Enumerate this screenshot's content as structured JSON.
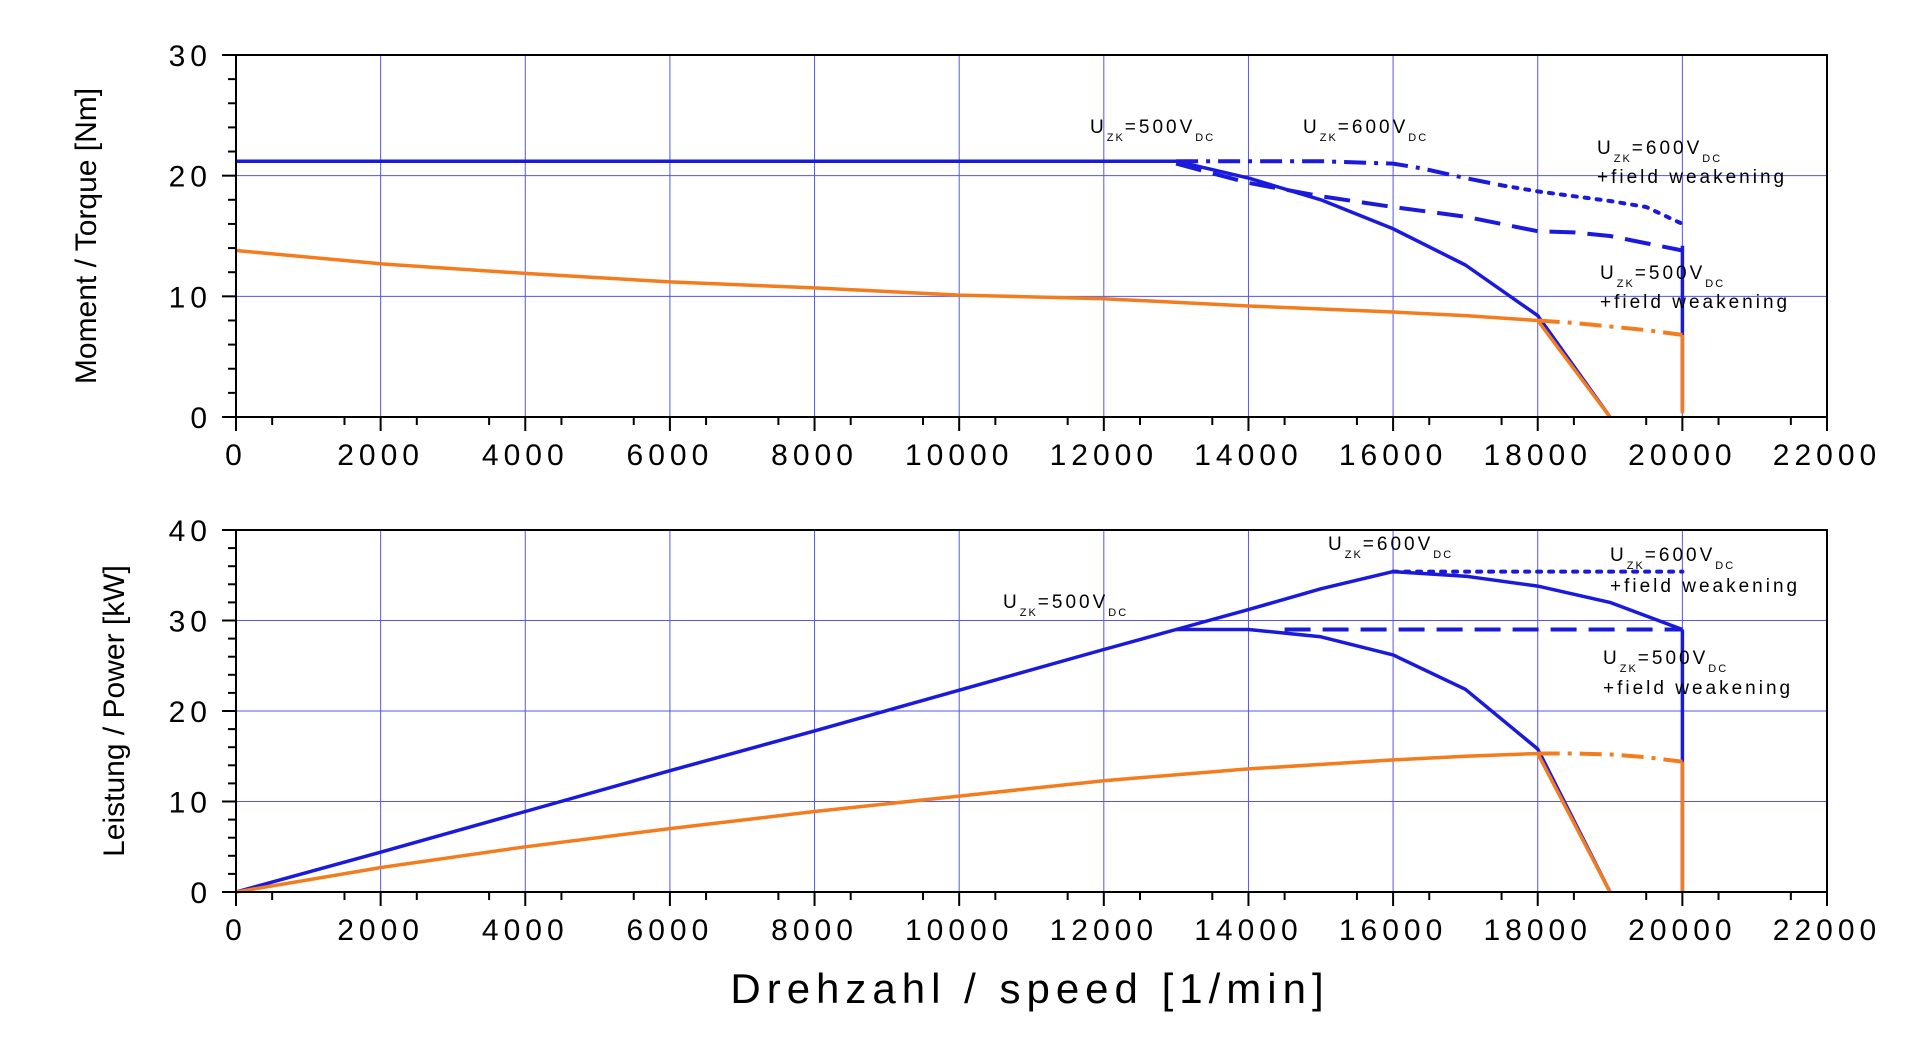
{
  "chart_data": [
    {
      "type": "line",
      "ylabel": "Moment / Torque [Nm]",
      "xlim": [
        0,
        22000
      ],
      "ylim": [
        0,
        30
      ],
      "xticks": [
        "0",
        "2000",
        "4000",
        "6000",
        "8000",
        "10000",
        "12000",
        "14000",
        "16000",
        "18000",
        "20000",
        "22000"
      ],
      "yticks": [
        "0",
        "10",
        "20",
        "30"
      ],
      "grid": true,
      "annotations": [
        {
          "id": "u500",
          "main": "U",
          "sub": "ZK",
          "mid": "=500V",
          "sub2": "DC",
          "extra": ""
        },
        {
          "id": "u600",
          "main": "U",
          "sub": "ZK",
          "mid": "=600V",
          "sub2": "DC",
          "extra": ""
        },
        {
          "id": "u600fw",
          "main": "U",
          "sub": "ZK",
          "mid": "=600V",
          "sub2": "DC",
          "extra": "+field weakening"
        },
        {
          "id": "u500fw",
          "main": "U",
          "sub": "ZK",
          "mid": "=500V",
          "sub2": "DC",
          "extra": "+field weakening"
        }
      ],
      "series": [
        {
          "name": "blue 500V",
          "color": "#1a1adc",
          "style": "solid",
          "x": [
            0,
            13000,
            14000,
            15000,
            16000,
            17000,
            18000,
            19000
          ],
          "y": [
            21.2,
            21.2,
            19.8,
            18.0,
            15.6,
            12.6,
            8.4,
            0
          ]
        },
        {
          "name": "blue 600V",
          "color": "#1a1adc",
          "style": "dashdot",
          "x": [
            13000,
            15000,
            16000,
            16400,
            17000,
            17500
          ],
          "y": [
            21.2,
            21.2,
            21.0,
            20.6,
            19.8,
            19.2
          ]
        },
        {
          "name": "blue 600V field weakening",
          "color": "#1a1adc",
          "style": "dotted",
          "x": [
            17500,
            18000,
            18500,
            19000,
            19500,
            20000
          ],
          "y": [
            19.2,
            18.7,
            18.3,
            17.9,
            17.4,
            16.0
          ]
        },
        {
          "name": "blue 500V field weakening",
          "color": "#1a1adc",
          "style": "dashed",
          "x": [
            13000,
            14000,
            15000,
            16000,
            17000,
            18000,
            18500,
            19000,
            20000
          ],
          "y": [
            21.0,
            19.4,
            18.3,
            17.4,
            16.6,
            15.4,
            15.3,
            15.0,
            13.8
          ]
        },
        {
          "name": "blue vertical 20000",
          "color": "#1a1adc",
          "style": "solid",
          "x": [
            20000,
            20000
          ],
          "y": [
            14.2,
            0.5
          ]
        },
        {
          "name": "orange",
          "color": "#f37c1e",
          "style": "solid",
          "x": [
            0,
            2000,
            4000,
            6000,
            8000,
            10000,
            12000,
            14000,
            16000,
            17000,
            18000,
            19000
          ],
          "y": [
            13.8,
            12.7,
            11.9,
            11.2,
            10.7,
            10.1,
            9.8,
            9.2,
            8.7,
            8.4,
            8.0,
            0
          ]
        },
        {
          "name": "orange field weakening",
          "color": "#f37c1e",
          "style": "dashdot",
          "x": [
            18000,
            18500,
            19000,
            19500,
            20000
          ],
          "y": [
            8.0,
            7.8,
            7.5,
            7.2,
            6.8
          ]
        },
        {
          "name": "orange vertical 20000",
          "color": "#f37c1e",
          "style": "solid",
          "x": [
            20000,
            20000
          ],
          "y": [
            6.8,
            0.3
          ]
        }
      ]
    },
    {
      "type": "line",
      "ylabel": "Leistung / Power [kW]",
      "xlabel": "Drehzahl / speed [1/min]",
      "xlim": [
        0,
        22000
      ],
      "ylim": [
        0,
        40
      ],
      "xticks": [
        "0",
        "2000",
        "4000",
        "6000",
        "8000",
        "10000",
        "12000",
        "14000",
        "16000",
        "18000",
        "20000",
        "22000"
      ],
      "yticks": [
        "0",
        "10",
        "20",
        "30",
        "40"
      ],
      "grid": true,
      "annotations": [
        {
          "id": "u600",
          "main": "U",
          "sub": "ZK",
          "mid": "=600V",
          "sub2": "DC",
          "extra": ""
        },
        {
          "id": "u500",
          "main": "U",
          "sub": "ZK",
          "mid": "=500V",
          "sub2": "DC",
          "extra": ""
        },
        {
          "id": "u600fw",
          "main": "U",
          "sub": "ZK",
          "mid": "=600V",
          "sub2": "DC",
          "extra": "+field weakening"
        },
        {
          "id": "u500fw",
          "main": "U",
          "sub": "ZK",
          "mid": "=500V",
          "sub2": "DC",
          "extra": "+field weakening"
        }
      ],
      "series": [
        {
          "name": "blue main",
          "color": "#1a1adc",
          "style": "solid",
          "x": [
            0,
            2000,
            4000,
            6000,
            8000,
            10000,
            12000,
            13000,
            14000,
            15000,
            16000,
            17000,
            18000,
            19000,
            20000
          ],
          "y": [
            0,
            4.4,
            8.9,
            13.4,
            17.8,
            22.3,
            26.8,
            29.0,
            31.2,
            33.5,
            35.4,
            34.9,
            33.8,
            32.0,
            29.0
          ]
        },
        {
          "name": "blue 500V",
          "color": "#1a1adc",
          "style": "solid",
          "x": [
            13000,
            14000,
            15000,
            16000,
            17000,
            18000,
            19000
          ],
          "y": [
            29.0,
            29.0,
            28.2,
            26.2,
            22.4,
            15.8,
            0
          ]
        },
        {
          "name": "blue 600V field weakening",
          "color": "#1a1adc",
          "style": "dotted",
          "x": [
            16000,
            18000,
            20000
          ],
          "y": [
            35.4,
            35.4,
            35.4
          ]
        },
        {
          "name": "blue 500V field weakening",
          "color": "#1a1adc",
          "style": "dashed",
          "x": [
            14500,
            20000
          ],
          "y": [
            29.0,
            29.0
          ]
        },
        {
          "name": "blue vertical 20000",
          "color": "#1a1adc",
          "style": "solid",
          "x": [
            20000,
            20000
          ],
          "y": [
            29.0,
            0
          ]
        },
        {
          "name": "orange",
          "color": "#f37c1e",
          "style": "solid",
          "x": [
            0,
            2000,
            4000,
            6000,
            8000,
            10000,
            12000,
            14000,
            16000,
            17000,
            18000,
            19000
          ],
          "y": [
            0,
            2.7,
            5.0,
            7.0,
            8.9,
            10.6,
            12.3,
            13.6,
            14.6,
            15.0,
            15.3,
            0
          ]
        },
        {
          "name": "orange field weakening",
          "color": "#f37c1e",
          "style": "dashdot",
          "x": [
            18000,
            18500,
            19000,
            19500,
            20000
          ],
          "y": [
            15.3,
            15.3,
            15.2,
            14.9,
            14.4
          ]
        },
        {
          "name": "orange vertical 20000",
          "color": "#f37c1e",
          "style": "solid",
          "x": [
            20000,
            20000
          ],
          "y": [
            14.4,
            0
          ]
        }
      ]
    }
  ]
}
